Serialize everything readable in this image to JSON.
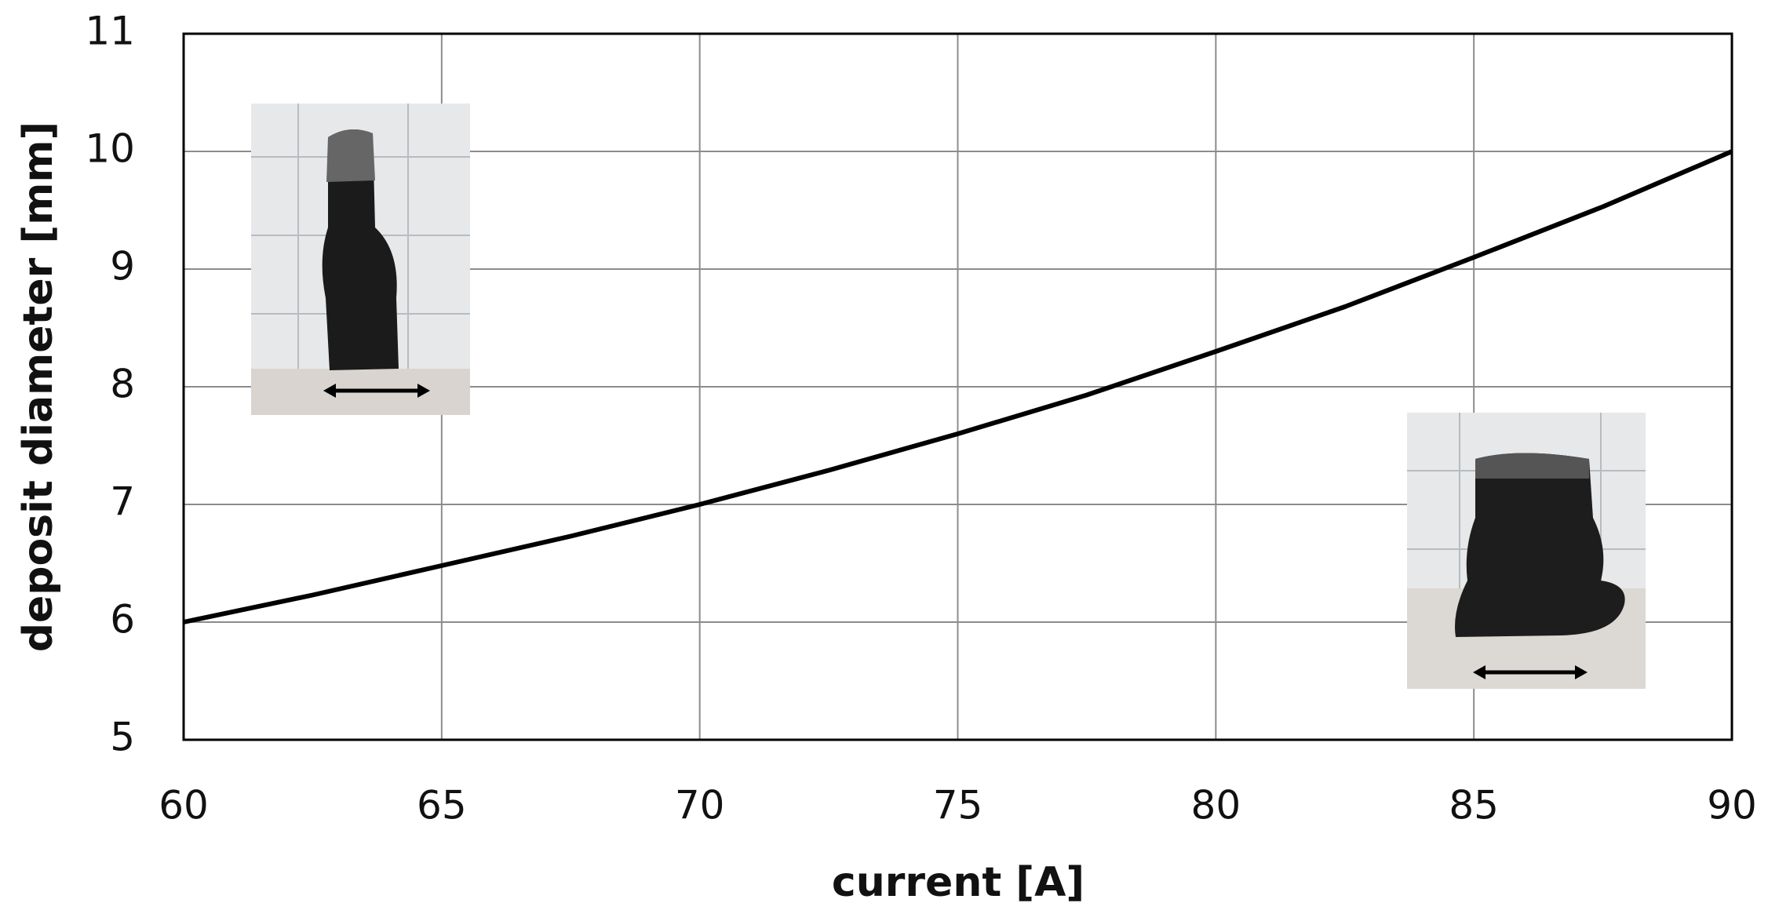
{
  "chart_data": {
    "type": "line",
    "x_label": "current [A]",
    "y_label": "deposit diameter [mm]",
    "x": [
      60,
      62.5,
      65,
      67.5,
      70,
      72.5,
      75,
      77.5,
      80,
      82.5,
      85,
      87.5,
      90
    ],
    "series": [
      {
        "color": "#000000",
        "values": [
          6.0,
          6.23,
          6.48,
          6.73,
          7.0,
          7.29,
          7.6,
          7.93,
          8.3,
          8.68,
          9.1,
          9.53,
          10.0
        ]
      }
    ],
    "xlim": [
      60,
      90
    ],
    "xticks": [
      60,
      65,
      70,
      75,
      80,
      85,
      90
    ],
    "ylim": [
      5,
      11
    ],
    "yticks": [
      5,
      6,
      7,
      8,
      9,
      10,
      11
    ],
    "grid": true
  }
}
